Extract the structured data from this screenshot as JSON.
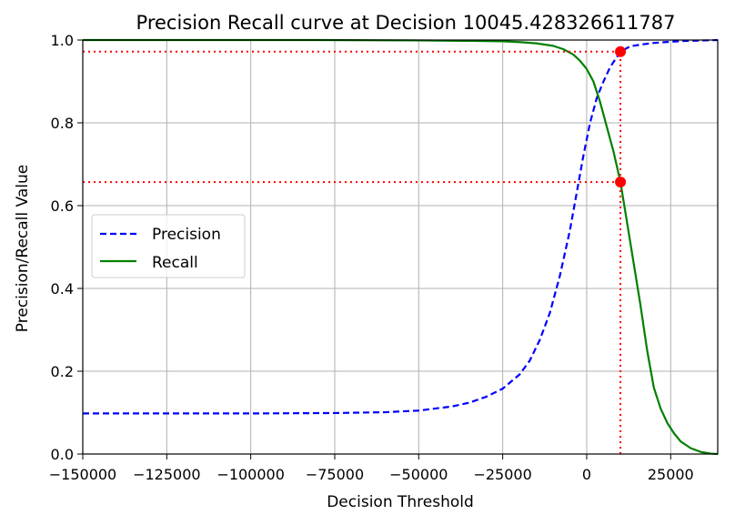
{
  "chart_data": {
    "type": "line",
    "title": "Precision Recall curve at Decision 10045.428326611787",
    "xlabel": "Decision Threshold",
    "ylabel": "Precision/Recall Value",
    "xlim": [
      -150000,
      39000
    ],
    "ylim": [
      0,
      1.0
    ],
    "grid": true,
    "legend": "center-left",
    "x_ticks": [
      -150000,
      -125000,
      -100000,
      -75000,
      -50000,
      -25000,
      0,
      25000
    ],
    "x_tick_labels": [
      "−150000",
      "−125000",
      "−100000",
      "−75000",
      "−50000",
      "−25000",
      "0",
      "25000"
    ],
    "y_ticks": [
      0,
      0.2,
      0.4,
      0.6,
      0.8,
      1.0
    ],
    "y_tick_labels": [
      "0.0",
      "0.2",
      "0.4",
      "0.6",
      "0.8",
      "1.0"
    ],
    "series": [
      {
        "name": "Precision",
        "color": "#0000ff",
        "style": "dashed",
        "x": [
          -150000,
          -100000,
          -75000,
          -60000,
          -50000,
          -40000,
          -35000,
          -30000,
          -25000,
          -20000,
          -17000,
          -14000,
          -11000,
          -8000,
          -5000,
          -3000,
          -1000,
          1000,
          3000,
          5000,
          7000,
          10045,
          13000,
          17000,
          20000,
          25000,
          30000,
          35000,
          39000
        ],
        "y": [
          0.098,
          0.098,
          0.099,
          0.101,
          0.105,
          0.115,
          0.124,
          0.138,
          0.158,
          0.192,
          0.225,
          0.275,
          0.34,
          0.43,
          0.54,
          0.63,
          0.72,
          0.8,
          0.86,
          0.9,
          0.935,
          0.972,
          0.985,
          0.99,
          0.993,
          0.996,
          0.998,
          0.999,
          1.0
        ]
      },
      {
        "name": "Recall",
        "color": "#008000",
        "style": "solid",
        "x": [
          -150000,
          -80000,
          -50000,
          -35000,
          -25000,
          -20000,
          -15000,
          -10000,
          -7000,
          -4000,
          -2000,
          0,
          2000,
          4000,
          6000,
          8000,
          10045,
          12000,
          14000,
          16000,
          18000,
          20000,
          22000,
          24000,
          26000,
          28000,
          31000,
          34000,
          37000,
          39000
        ],
        "y": [
          1.0,
          1.0,
          0.999,
          0.998,
          0.997,
          0.995,
          0.992,
          0.986,
          0.978,
          0.965,
          0.95,
          0.93,
          0.9,
          0.85,
          0.79,
          0.73,
          0.657,
          0.56,
          0.46,
          0.36,
          0.25,
          0.16,
          0.11,
          0.075,
          0.05,
          0.03,
          0.014,
          0.005,
          0.001,
          0.0
        ]
      }
    ],
    "markers": [
      {
        "x": 10045.428326611787,
        "y": 0.972,
        "color": "#ff0000"
      },
      {
        "x": 10045.428326611787,
        "y": 0.657,
        "color": "#ff0000"
      }
    ],
    "reference_lines": [
      {
        "orientation": "vertical",
        "x": 10045.428326611787,
        "y_from": 0,
        "y_to": 0.972,
        "color": "#ff0000",
        "style": "dotted"
      },
      {
        "orientation": "horizontal",
        "y": 0.972,
        "x_from": -150000,
        "x_to": 10045.428326611787,
        "color": "#ff0000",
        "style": "dotted"
      },
      {
        "orientation": "horizontal",
        "y": 0.657,
        "x_from": -150000,
        "x_to": 10045.428326611787,
        "color": "#ff0000",
        "style": "dotted"
      }
    ]
  }
}
